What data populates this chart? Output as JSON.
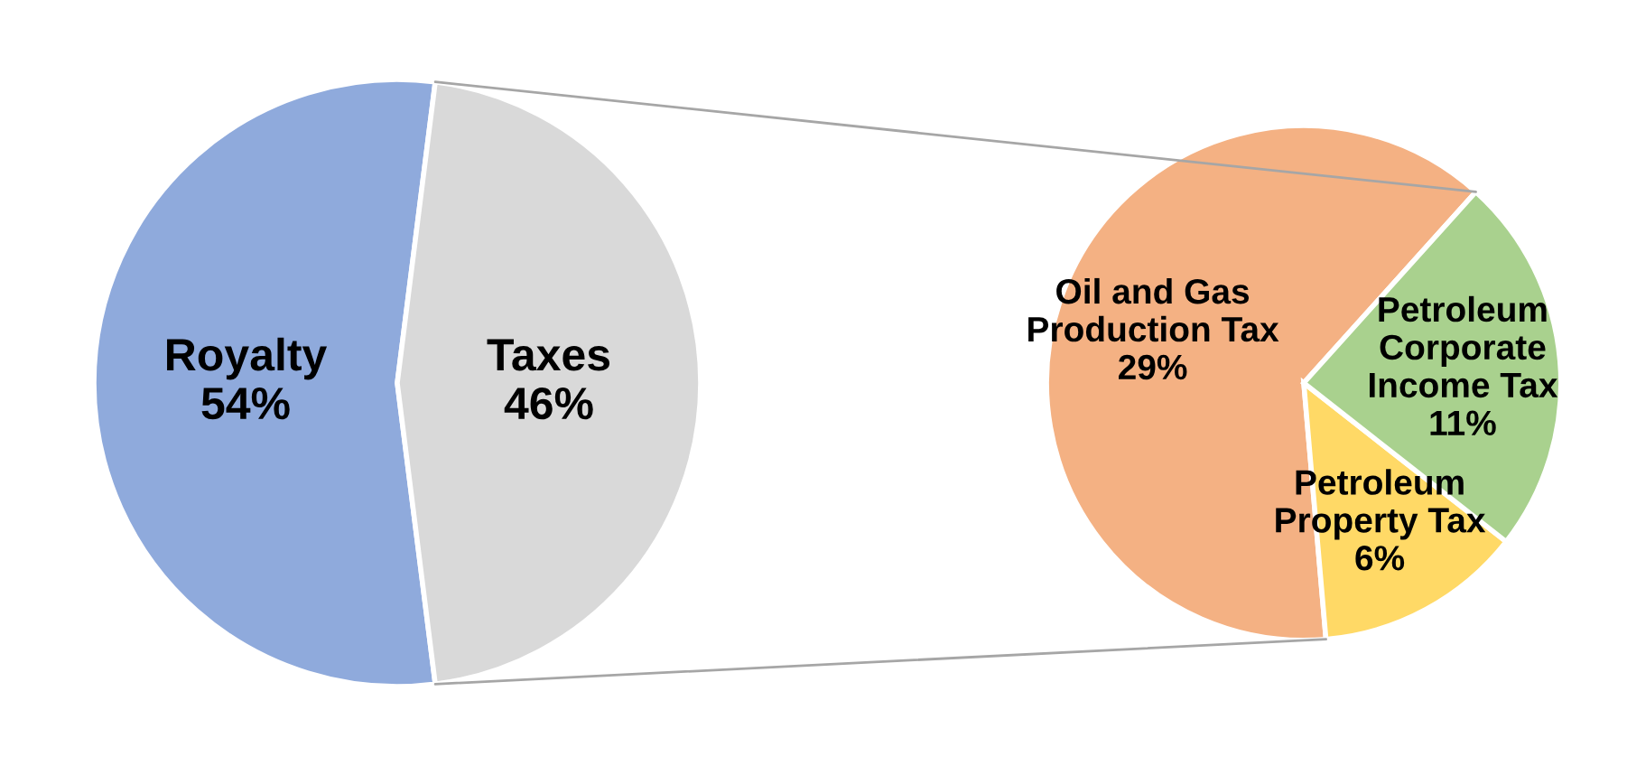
{
  "chart_data": [
    {
      "type": "pie",
      "categories": [
        "Royalty",
        "Taxes"
      ],
      "values": [
        54,
        46
      ],
      "value_labels": [
        "54%",
        "46%"
      ],
      "colors": [
        "#8faadc",
        "#d9d9d9"
      ],
      "legend": false
    },
    {
      "type": "pie",
      "categories": [
        "Oil and Gas\nProduction Tax",
        "Petroleum\nProperty Tax",
        "Petroleum\nCorporate\nIncome Tax"
      ],
      "values": [
        29,
        6,
        11
      ],
      "value_labels": [
        "29%",
        "6%",
        "11%"
      ],
      "colors": [
        "#f4b183",
        "#ffd966",
        "#a9d18e"
      ],
      "legend": false
    }
  ]
}
